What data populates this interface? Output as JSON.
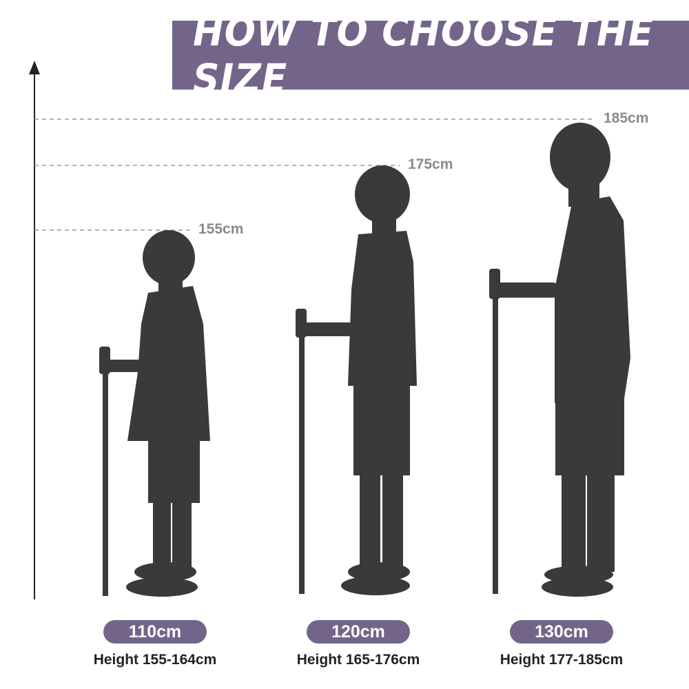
{
  "title": "HOW TO CHOOSE THE SIZE",
  "height_marks": [
    "155cm",
    "175cm",
    "185cm"
  ],
  "sizes": [
    {
      "pole_length": "110cm",
      "user_height": "Height 155-164cm"
    },
    {
      "pole_length": "120cm",
      "user_height": "Height 165-176cm"
    },
    {
      "pole_length": "130cm",
      "user_height": "Height 177-185cm"
    }
  ],
  "colors": {
    "accent": "#73658a",
    "silhouette": "#3a3a3a",
    "guide": "#8a8a8a"
  }
}
